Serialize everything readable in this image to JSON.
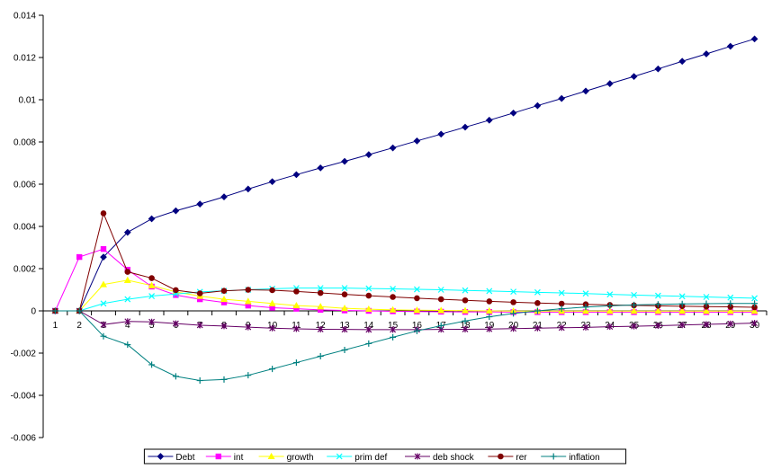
{
  "chart_data": {
    "type": "line",
    "title": "",
    "xlabel": "",
    "ylabel": "",
    "x": [
      1,
      2,
      3,
      4,
      5,
      6,
      7,
      8,
      9,
      10,
      11,
      12,
      13,
      14,
      15,
      16,
      17,
      18,
      19,
      20,
      21,
      22,
      23,
      24,
      25,
      26,
      27,
      28,
      29,
      30
    ],
    "ylim": [
      -0.006,
      0.014
    ],
    "yticks": [
      -0.006,
      -0.004,
      -0.002,
      0,
      0.002,
      0.004,
      0.006,
      0.008,
      0.01,
      0.012,
      0.014
    ],
    "ytick_labels": [
      "-0.006",
      "-0.004",
      "-0.002",
      "0",
      "0.002",
      "0.004",
      "0.006",
      "0.008",
      "0.01",
      "0.012",
      "0.014"
    ],
    "grid": false,
    "legend_position": "bottom",
    "series": [
      {
        "name": "Debt",
        "color": "#000080",
        "marker": "diamond",
        "values": [
          0,
          0,
          0.00255,
          0.00372,
          0.00436,
          0.00474,
          0.00506,
          0.0054,
          0.00577,
          0.00612,
          0.00645,
          0.00677,
          0.00708,
          0.0074,
          0.00772,
          0.00805,
          0.00837,
          0.0087,
          0.00903,
          0.00937,
          0.00972,
          0.01006,
          0.01041,
          0.01076,
          0.0111,
          0.01146,
          0.01182,
          0.01217,
          0.01253,
          0.01288
        ]
      },
      {
        "name": "int",
        "color": "#FF00FF",
        "marker": "square",
        "values": [
          0,
          0.00255,
          0.00293,
          0.00195,
          0.00115,
          0.00075,
          0.00055,
          0.0004,
          0.00025,
          0.00015,
          0.0001,
          5e-05,
          2e-05,
          0,
          -2e-05,
          -3e-05,
          -4e-05,
          -5e-05,
          -5e-05,
          -6e-05,
          -6e-05,
          -6e-05,
          -6e-05,
          -6e-05,
          -6e-05,
          -6e-05,
          -6e-05,
          -6e-05,
          -6e-05,
          -6e-05
        ]
      },
      {
        "name": "growth",
        "color": "#FFFF00",
        "marker": "triangle",
        "values": [
          0,
          0,
          0.00125,
          0.00145,
          0.0012,
          0.0009,
          0.0007,
          0.00055,
          0.00045,
          0.00035,
          0.00025,
          0.0002,
          0.00012,
          8e-05,
          5e-05,
          3e-05,
          2e-05,
          1e-05,
          0,
          -1e-05,
          -1e-05,
          -1e-05,
          -1e-05,
          -1e-05,
          -1e-05,
          -1e-05,
          -1e-05,
          -1e-05,
          -1e-05,
          -1e-05
        ]
      },
      {
        "name": "prim def",
        "color": "#00FFFF",
        "marker": "x",
        "values": [
          0,
          0,
          0.00035,
          0.00055,
          0.0007,
          0.0008,
          0.0009,
          0.00095,
          0.001,
          0.00105,
          0.00108,
          0.00108,
          0.00108,
          0.00106,
          0.00104,
          0.00102,
          0.001,
          0.00097,
          0.00094,
          0.00091,
          0.00088,
          0.00085,
          0.00082,
          0.00078,
          0.00075,
          0.00072,
          0.00069,
          0.00066,
          0.00063,
          0.0006
        ]
      },
      {
        "name": "deb shock",
        "color": "#660066",
        "marker": "star",
        "values": [
          0,
          0,
          -0.00065,
          -0.0005,
          -0.00052,
          -0.0006,
          -0.00068,
          -0.00072,
          -0.00077,
          -0.00082,
          -0.00085,
          -0.00087,
          -0.00088,
          -0.00089,
          -0.00089,
          -0.00089,
          -0.00088,
          -0.00087,
          -0.00086,
          -0.00084,
          -0.00082,
          -0.0008,
          -0.00078,
          -0.00075,
          -0.00073,
          -0.0007,
          -0.00067,
          -0.00064,
          -0.00061,
          -0.00058
        ]
      },
      {
        "name": "rer",
        "color": "#800000",
        "marker": "circle",
        "values": [
          0,
          0,
          0.00462,
          0.00185,
          0.00155,
          0.00098,
          0.00083,
          0.00095,
          0.001,
          0.00098,
          0.00092,
          0.00085,
          0.00078,
          0.00072,
          0.00066,
          0.0006,
          0.00055,
          0.0005,
          0.00045,
          0.00041,
          0.00037,
          0.00034,
          0.00031,
          0.00028,
          0.00026,
          0.00024,
          0.00022,
          0.0002,
          0.00019,
          0.00017
        ]
      },
      {
        "name": "inflation",
        "color": "#008080",
        "marker": "plus",
        "values": [
          0,
          0,
          -0.0012,
          -0.0016,
          -0.00255,
          -0.0031,
          -0.0033,
          -0.00325,
          -0.00305,
          -0.00275,
          -0.00245,
          -0.00215,
          -0.00185,
          -0.00155,
          -0.00125,
          -0.00095,
          -0.0007,
          -0.00048,
          -0.00028,
          -0.00012,
          0,
          0.0001,
          0.00018,
          0.00024,
          0.00028,
          0.00031,
          0.00033,
          0.00034,
          0.00035,
          0.00035
        ]
      }
    ]
  }
}
